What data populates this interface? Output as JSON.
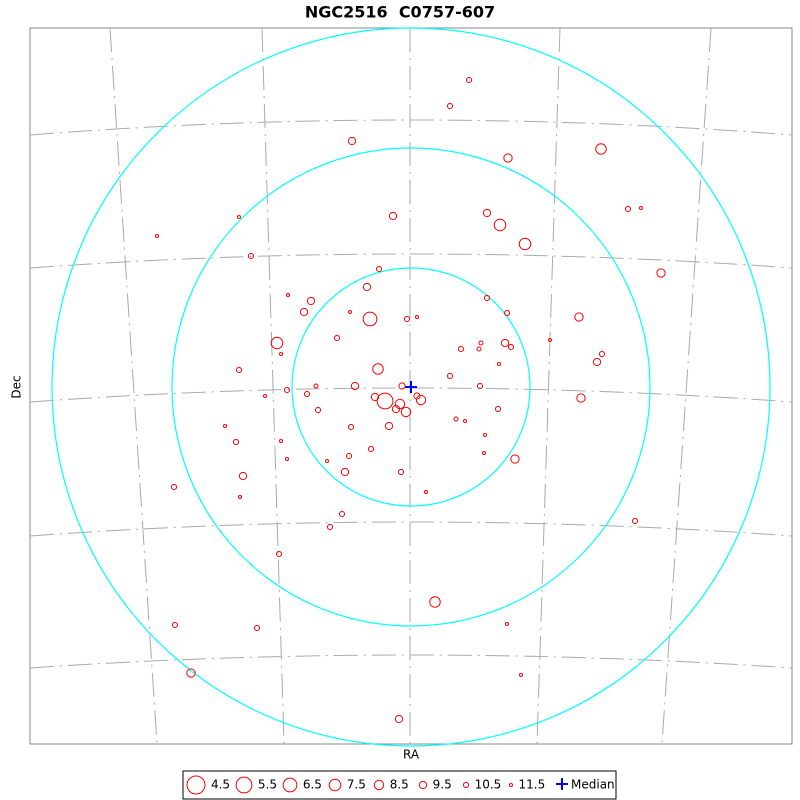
{
  "chart_data": {
    "type": "scatter",
    "title": "NGC2516  C0757-607",
    "xlabel": "RA",
    "ylabel": "Dec",
    "xlim": [
      0,
      762
    ],
    "ylim": [
      0,
      716
    ],
    "color": "#ff0000",
    "ring_color": "#00ffff",
    "median_color": "#0000ff",
    "series": [
      {
        "x": [
          439,
          420,
          322,
          571,
          478,
          209,
          127,
          363,
          457,
          470,
          598,
          611,
          495,
          221,
          349,
          631,
          337,
          258,
          281,
          457,
          274,
          320,
          340,
          377,
          387,
          477,
          549,
          247,
          307,
          451,
          475,
          481,
          431,
          449,
          520,
          572,
          251,
          567,
          469,
          348,
          209,
          420,
          325,
          286,
          372,
          450,
          257,
          235,
          277,
          345,
          355,
          387,
          391,
          370,
          366,
          376,
          551,
          288,
          468,
          426,
          435,
          359,
          195,
          321,
          455,
          206,
          251,
          341,
          319,
          454,
          485,
          257,
          297,
          315,
          371,
          213,
          144,
          396,
          210,
          312,
          605,
          300,
          249,
          405,
          145,
          227,
          477,
          161,
          491,
          369
        ],
        "y": [
          664,
          638,
          603,
          595,
          586,
          527,
          508,
          528,
          531,
          519,
          535,
          536,
          500,
          488,
          475,
          471,
          457,
          449,
          443,
          446,
          432,
          432,
          425,
          425,
          427,
          431,
          427,
          401,
          406,
          401,
          401,
          397,
          395,
          395,
          404,
          390,
          390,
          382,
          380,
          375,
          374,
          368,
          358,
          358,
          358,
          358,
          354,
          348,
          350,
          347,
          343,
          348,
          344,
          340,
          335,
          332,
          346,
          334,
          335,
          325,
          323,
          318,
          318,
          317,
          309,
          302,
          303,
          295,
          288,
          291,
          285,
          285,
          283,
          272,
          272,
          268,
          257,
          252,
          247,
          230,
          223,
          217,
          190,
          142,
          119,
          116,
          120,
          71,
          69,
          25
        ],
        "size": [
          10.5,
          10.5,
          9.5,
          8,
          9,
          11.5,
          11.5,
          9.5,
          9.5,
          7.5,
          10.5,
          11.5,
          7.5,
          10.5,
          10.5,
          9,
          9.5,
          11.5,
          9.5,
          10.5,
          9.5,
          11.5,
          6.5,
          10.5,
          11.5,
          10.5,
          9,
          7.5,
          10.5,
          11,
          9.5,
          10.5,
          10.5,
          11,
          11.5,
          10.5,
          11.5,
          9.5,
          11.5,
          8,
          10.5,
          10.5,
          9.5,
          11,
          10,
          10.5,
          10.5,
          11.5,
          10.5,
          9.5,
          5.5,
          10,
          8.5,
          8.5,
          9.5,
          8.5,
          9,
          10.5,
          10.5,
          11,
          11.5,
          9.5,
          11.5,
          10.5,
          11.5,
          10.5,
          11.5,
          10.5,
          10.5,
          11.5,
          9,
          11.5,
          11.5,
          9.5,
          10.5,
          9.5,
          10.5,
          11.5,
          11.5,
          10.5,
          10.5,
          10.5,
          10.5,
          8,
          10.5,
          10.5,
          11.5,
          9,
          11.5,
          9.5
        ]
      }
    ],
    "median": {
      "x": 381,
      "y": 357
    },
    "rings": [
      119,
      239,
      359
    ],
    "legend_sizes": [
      4.5,
      5.5,
      6.5,
      7.5,
      8.5,
      9.5,
      10.5,
      11.5
    ],
    "median_label": "Median"
  }
}
